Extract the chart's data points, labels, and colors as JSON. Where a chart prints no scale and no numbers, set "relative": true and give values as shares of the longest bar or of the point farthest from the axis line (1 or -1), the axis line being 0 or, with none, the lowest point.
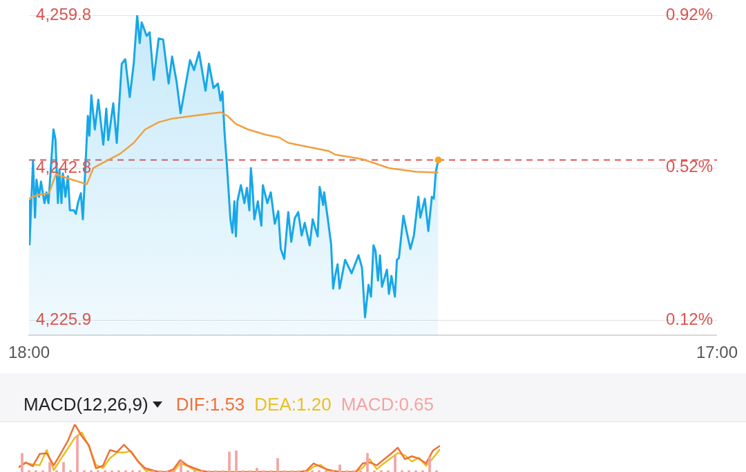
{
  "chart_data": [
    {
      "type": "area",
      "x": [
        "--01-01T18:00",
        "--01-01T18:01",
        "--01-01T18:08",
        "--01-01T18:12",
        "--01-01T18:15",
        "--01-01T18:20",
        "--01-01T18:24",
        "--01-01T18:31",
        "--01-01T18:35",
        "--01-01T18:39",
        "--01-01T18:49",
        "--01-01T18:53",
        "--01-01T18:58",
        "--01-01T19:01",
        "--01-01T19:05",
        "--01-01T19:08",
        "--01-01T19:13",
        "--01-01T19:18",
        "--01-01T19:22",
        "--01-01T19:30",
        "--01-01T19:34",
        "--01-01T19:38",
        "--01-01T19:44",
        "--01-01T19:48",
        "--01-01T19:58",
        "--01-01T20:01",
        "--01-01T20:05",
        "--01-01T20:12",
        "--01-01T20:19",
        "--01-01T20:29",
        "--01-01T20:35",
        "--01-01T20:39",
        "--01-01T20:49",
        "--01-01T20:56",
        "--01-01T21:06",
        "--01-01T21:13",
        "--01-01T21:22",
        "--01-01T21:30",
        "--01-01T21:37",
        "--01-01T21:42",
        "--01-01T21:46",
        "--01-01T21:56",
        "--01-01T22:02",
        "--01-01T22:10",
        "--01-01T22:20",
        "--01-01T22:29",
        "--01-01T22:40",
        "--01-01T22:47",
        "--01-01T22:56",
        "--01-01T23:04",
        "--01-01T23:23",
        "--01-01T23:31",
        "--01-01T23:41",
        "--01-01T23:54",
        "--01-02T00:01",
        "--01-02T00:10",
        "--01-02T00:19",
        "--01-02T00:24",
        "--01-02T00:28",
        "--01-02T00:32",
        "--01-02T00:37",
        "--01-02T00:44",
        "--01-02T00:48",
        "--01-02T00:52",
        "--01-02T00:55",
        "--01-02T00:58",
        "--01-02T01:05",
        "--01-02T01:12",
        "--01-02T01:17",
        "--01-02T01:22",
        "--01-02T01:25",
        "--01-02T01:28",
        "--01-02T01:32",
        "--01-02T01:39",
        "--01-02T01:46",
        "--01-02T01:49",
        "--01-02T01:58",
        "--01-02T02:05",
        "--01-02T02:13",
        "--01-02T02:20",
        "--01-02T02:25",
        "--01-02T02:32",
        "--01-02T02:40",
        "--01-02T02:46",
        "--01-02T02:53",
        "--01-02T03:00",
        "--01-02T03:07",
        "--01-02T03:13",
        "--01-02T03:23",
        "--01-02T03:29",
        "--01-02T03:39",
        "--01-02T03:43",
        "--01-02T03:50",
        "--01-02T03:52",
        "--01-02T03:59",
        "--01-02T04:06",
        "--01-02T04:10",
        "--01-02T04:14",
        "--01-02T04:19",
        "--01-02T04:23",
        "--01-02T04:34",
        "--01-02T04:47",
        "--01-02T05:01",
        "--01-02T05:08",
        "--01-02T05:14",
        "--01-02T05:21",
        "--01-02T05:26",
        "--01-02T05:31",
        "--01-02T05:35",
        "--01-02T05:40",
        "--01-02T05:44",
        "--01-02T05:48",
        "--01-02T05:58",
        "--01-02T06:02",
        "--01-02T06:07",
        "--01-02T06:14",
        "--01-02T06:18",
        "--01-02T06:22",
        "--01-02T06:31",
        "--01-02T06:38",
        "--01-02T06:45",
        "--01-02T06:52",
        "--01-02T07:01",
        "--01-02T07:05",
        "--01-02T07:14",
        "--01-02T07:21",
        "--01-02T07:28",
        "--01-02T07:32",
        "--01-02T07:36",
        "--01-02T07:41"
      ],
      "series": [
        {
          "color": "#17a7e8",
          "values": [
            4239.2,
            4234.3,
            4243.6,
            4237.3,
            4241.5,
            4239.6,
            4241.3,
            4238.9,
            4240.1,
            4238.9,
            4247.1,
            4246.0,
            4238.9,
            4242.6,
            4238.9,
            4242.2,
            4239.6,
            4241.9,
            4238.1,
            4238.1,
            4237.7,
            4238.9,
            4240.0,
            4237.1,
            4248.6,
            4246.4,
            4250.9,
            4247.1,
            4250.4,
            4245.4,
            4249.4,
            4245.9,
            4250.0,
            4245.6,
            4254.4,
            4254.9,
            4250.7,
            4254.4,
            4259.8,
            4256.7,
            4259.0,
            4257.5,
            4257.9,
            4252.6,
            4257.2,
            4257.1,
            4252.2,
            4255.2,
            4252.4,
            4248.9,
            4254.8,
            4253.7,
            4255.7,
            4251.4,
            4254.4,
            4251.7,
            4252.2,
            4250.3,
            4251.3,
            4246.9,
            4243.1,
            4237.1,
            4235.6,
            4239.1,
            4235.2,
            4239.1,
            4240.9,
            4238.9,
            4240.6,
            4238.1,
            4242.8,
            4240.9,
            4237.1,
            4239.1,
            4236.4,
            4240.9,
            4238.9,
            4240.1,
            4236.6,
            4238.0,
            4233.8,
            4232.7,
            4237.9,
            4234.6,
            4237.2,
            4237.9,
            4235.3,
            4236.7,
            4234.2,
            4237.1,
            4235.2,
            4240.7,
            4238.7,
            4240.1,
            4237.3,
            4234.3,
            4229.4,
            4230.8,
            4232.1,
            4229.4,
            4232.6,
            4231.1,
            4233.1,
            4231.7,
            4226.2,
            4229.8,
            4228.5,
            4234.2,
            4233.6,
            4230.3,
            4233.1,
            4229.6,
            4231.5,
            4228.8,
            4230.8,
            4228.5,
            4232.6,
            4232.8,
            4237.5,
            4235.6,
            4233.8,
            4235.3,
            4239.6,
            4237.3,
            4239.4,
            4235.8,
            4239.6,
            4239.4,
            4242.4,
            4243.7
          ]
        },
        {
          "type": "line",
          "color": "#f0a040",
          "x": [
            "--01-01T18:00",
            "--01-01T18:17",
            "--01-01T18:40",
            "--01-01T18:54",
            "--01-01T19:21",
            "--01-01T19:56",
            "--01-01T20:09",
            "--01-01T20:32",
            "--01-01T21:03",
            "--01-01T21:30",
            "--01-01T21:53",
            "--01-01T22:20",
            "--01-01T22:47",
            "--01-01T23:14",
            "--01-02T00:25",
            "--01-02T00:38",
            "--01-02T00:55",
            "--01-02T01:19",
            "--01-02T01:55",
            "--01-02T02:22",
            "--01-02T02:40",
            "--01-02T03:16",
            "--01-02T04:01",
            "--01-02T04:14",
            "--01-02T05:08",
            "--01-02T06:02",
            "--01-02T06:56",
            "--01-02T07:41"
          ],
          "values": [
            4239.4,
            4239.8,
            4240.0,
            4242.1,
            4241.6,
            4241.0,
            4242.8,
            4243.5,
            4244.4,
            4245.6,
            4247.1,
            4247.9,
            4248.3,
            4248.5,
            4249.0,
            4248.6,
            4247.7,
            4247.1,
            4246.5,
            4246.2,
            4245.6,
            4245.2,
            4244.7,
            4244.3,
            4243.8,
            4242.8,
            4242.4,
            4242.3
          ]
        },
        {
          "type": "scatter",
          "color": "#f5a623",
          "x": [
            "--01-02T07:41"
          ],
          "values": [
            4243.7
          ]
        }
      ],
      "xlim": [
        "--01-01T18:00",
        "--01-02T17:00"
      ],
      "xticks": [
        {
          "value": "--01-01T18:00",
          "label": "18:00"
        },
        {
          "value": "--01-02T17:00",
          "label": "17:00"
        }
      ],
      "ylim": [
        4224.2,
        4259.8
      ],
      "yticks": [
        {
          "value": 4225.9,
          "label": "4,225.9"
        },
        {
          "value": 4242.8,
          "label": "4,242.8"
        },
        {
          "value": 4259.8,
          "label": "4,259.8"
        }
      ],
      "y2lim": [
        0.08,
        0.92
      ],
      "y2ticks": [
        {
          "value": 0.12,
          "label": "0.12%"
        },
        {
          "value": 0.52,
          "label": "0.52%"
        },
        {
          "value": 0.92,
          "label": "0.92%"
        }
      ],
      "ref_lines": [
        {
          "axis": "y",
          "value": 4243.7,
          "color": "#e05555",
          "line_style": "dashed"
        }
      ],
      "grid": "y"
    },
    {
      "type": "line",
      "title": "MACD(12,26,9)",
      "relative": true,
      "legend": "top",
      "tick_labels": false,
      "categories": [
        null,
        null,
        null,
        null,
        null,
        null,
        null,
        null,
        null,
        null,
        null,
        null,
        null,
        null,
        null,
        null,
        null,
        null,
        null,
        null,
        null,
        null,
        null,
        null,
        null,
        null,
        null,
        null,
        null,
        null,
        null,
        null,
        null,
        null,
        null,
        null,
        null,
        null,
        null,
        null,
        null,
        null,
        null,
        null,
        null,
        null,
        null,
        null,
        null,
        null,
        null,
        null,
        null,
        null,
        null,
        null,
        null,
        null,
        null,
        null,
        null
      ],
      "series": [
        {
          "name": "DEA:1.20",
          "color": "#e8c020",
          "values": [
            0.1,
            0.19,
            0.16,
            0.14,
            0.46,
            0.04,
            0.27,
            0.49,
            0.72,
            0.83,
            0.54,
            0.15,
            0.08,
            0.29,
            0.41,
            0.41,
            0.44,
            0.23,
            0.04,
            0.02,
            0,
            0,
            0,
            0.18,
            0.13,
            0.04,
            0.02,
            0,
            0,
            0,
            0,
            0,
            0,
            0,
            0,
            0,
            0,
            0,
            0,
            0,
            0,
            0,
            0.11,
            0.15,
            0.03,
            0.02,
            0,
            0,
            0,
            0.09,
            0.27,
            0.06,
            0.18,
            0.29,
            0.4,
            0.35,
            0.22,
            0.3,
            0.13,
            0.29,
            0.48
          ]
        },
        {
          "name": "DIF:1.53",
          "color": "#f07035",
          "values": [
            0.1,
            0.2,
            0.12,
            0.38,
            0.39,
            0.14,
            0.39,
            0.65,
            1.0,
            0.75,
            0.56,
            0.08,
            0.13,
            0.46,
            0.42,
            0.57,
            0.42,
            0.22,
            0.08,
            0.04,
            0,
            0,
            0.05,
            0.25,
            0.14,
            0.08,
            0.03,
            0,
            0,
            0,
            0,
            0,
            0,
            0,
            0,
            0,
            0,
            0,
            0,
            0,
            0,
            0.03,
            0.18,
            0.11,
            0.05,
            0.02,
            0,
            0,
            0,
            0.18,
            0.2,
            0.14,
            0.26,
            0.38,
            0.51,
            0.27,
            0.33,
            0.28,
            0.18,
            0.45,
            0.55
          ]
        }
      ]
    },
    {
      "type": "bar",
      "relative": true,
      "legend": "top right",
      "tick_labels": false,
      "categories": [
        null,
        null,
        null,
        null,
        null,
        null,
        null,
        null,
        null,
        null,
        null,
        null,
        null,
        null,
        null,
        null,
        null,
        null,
        null,
        null,
        null,
        null,
        null,
        null,
        null,
        null,
        null,
        null,
        null,
        null,
        null,
        null,
        null,
        null,
        null,
        null,
        null,
        null,
        null,
        null,
        null,
        null,
        null,
        null,
        null,
        null,
        null,
        null,
        null,
        null,
        null,
        null,
        null,
        null,
        null,
        null,
        null,
        null,
        null,
        null,
        null
      ],
      "series": [
        {
          "name": "MACD:0.65",
          "color": "#f4a3a3",
          "values": [
            0.52,
            0.04,
            0.04,
            0.04,
            0.27,
            0.04,
            0.27,
            0.04,
            1,
            0.04,
            0.04,
            0.04,
            0.04,
            0.04,
            0.04,
            0.04,
            0.04,
            0.04,
            0.04,
            0.04,
            0.04,
            0.04,
            0.04,
            0.3,
            0.04,
            0.04,
            0.04,
            0.04,
            0.04,
            0.04,
            0.56,
            0.59,
            0.04,
            0.04,
            0.11,
            0.04,
            0.04,
            0.38,
            0.04,
            0.04,
            0.04,
            0.04,
            0.04,
            0.04,
            0.04,
            0.04,
            0.2,
            0.04,
            0.04,
            0.04,
            0.52,
            0.04,
            0.04,
            0.04,
            0.46,
            0.04,
            0.04,
            0.04,
            0.04,
            0.42,
            0.04
          ]
        }
      ]
    }
  ]
}
